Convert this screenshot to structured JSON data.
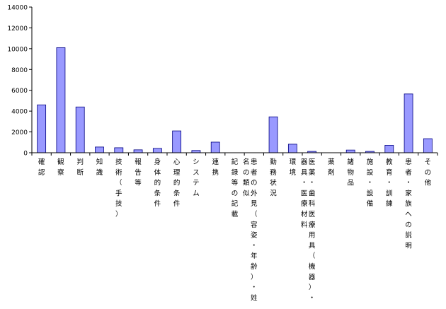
{
  "chart_data": {
    "type": "bar",
    "categories": [
      "確認",
      "観察",
      "判断",
      "知識",
      "技術（手技）",
      "報告等",
      "身体的条件",
      "心理的条件",
      "システム",
      "連携",
      "記録等の記載",
      "患者の外見（容姿・年齢）・姓名の類似",
      "勤務状況",
      "環境",
      "医薬・歯科医療用具（機器）・器具・医療材料",
      "薬剤",
      "諸物品",
      "施設・設備",
      "教育・訓練",
      "患者・家族への説明",
      "その他"
    ],
    "values": [
      4600,
      10100,
      4400,
      550,
      480,
      280,
      420,
      2100,
      220,
      1020,
      0,
      0,
      3450,
      820,
      130,
      0,
      260,
      130,
      720,
      5650,
      1350
    ],
    "yticks": [
      "0",
      "2000",
      "4000",
      "6000",
      "8000",
      "10000",
      "12000",
      "14000"
    ],
    "ylim": [
      0,
      14000
    ],
    "bar_color": "#9999ff",
    "bar_edge_color": "#000080",
    "grid": false,
    "legend": "none"
  }
}
